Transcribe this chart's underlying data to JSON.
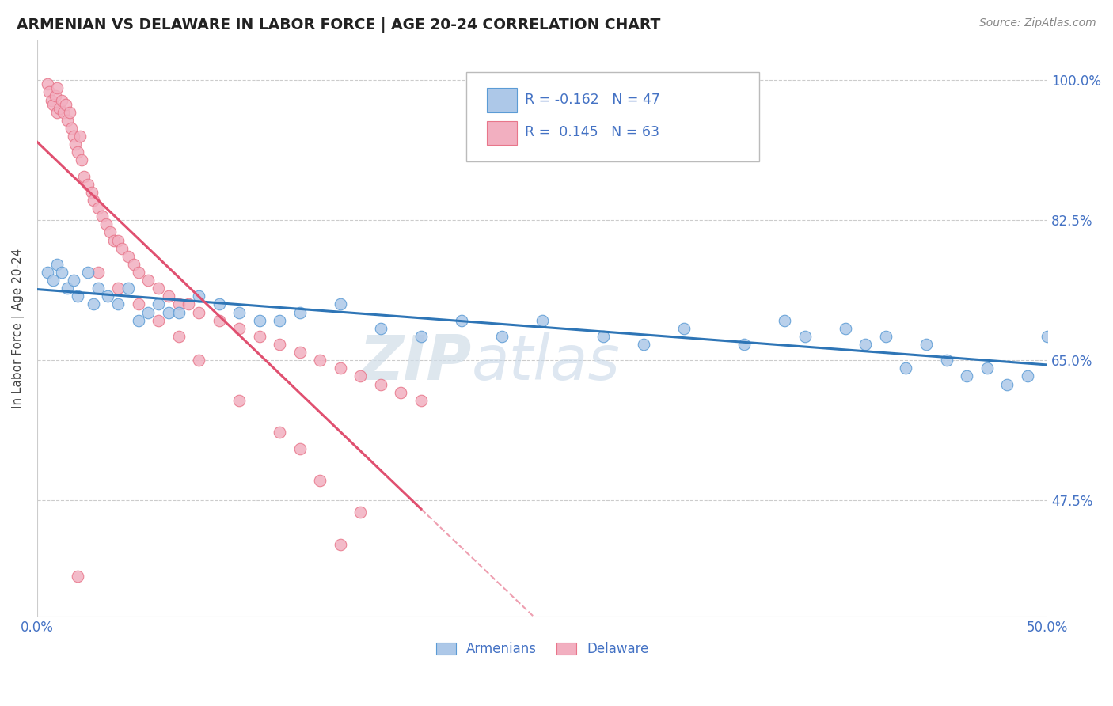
{
  "title": "ARMENIAN VS DELAWARE IN LABOR FORCE | AGE 20-24 CORRELATION CHART",
  "source": "Source: ZipAtlas.com",
  "ylabel": "In Labor Force | Age 20-24",
  "xlim": [
    0.0,
    0.5
  ],
  "ylim": [
    0.33,
    1.05
  ],
  "yticks": [
    0.475,
    0.65,
    0.825,
    1.0
  ],
  "yticklabels": [
    "47.5%",
    "65.0%",
    "82.5%",
    "100.0%"
  ],
  "R_blue": -0.162,
  "N_blue": 47,
  "R_pink": 0.145,
  "N_pink": 63,
  "blue_fill": "#adc8e8",
  "pink_fill": "#f2afc0",
  "blue_edge": "#5b9bd5",
  "pink_edge": "#e8768a",
  "blue_line_color": "#2e75b6",
  "pink_line_color": "#e05070",
  "watermark_color": "#d0dde8",
  "legend_label_blue": "Armenians",
  "legend_label_pink": "Delaware",
  "blue_x": [
    0.005,
    0.008,
    0.01,
    0.012,
    0.015,
    0.018,
    0.02,
    0.025,
    0.028,
    0.03,
    0.035,
    0.04,
    0.045,
    0.05,
    0.055,
    0.06,
    0.065,
    0.07,
    0.08,
    0.09,
    0.1,
    0.11,
    0.12,
    0.13,
    0.15,
    0.17,
    0.19,
    0.21,
    0.23,
    0.25,
    0.28,
    0.3,
    0.32,
    0.35,
    0.37,
    0.38,
    0.4,
    0.41,
    0.42,
    0.43,
    0.44,
    0.45,
    0.46,
    0.47,
    0.48,
    0.49,
    0.5
  ],
  "blue_y": [
    0.76,
    0.75,
    0.77,
    0.76,
    0.74,
    0.75,
    0.73,
    0.76,
    0.72,
    0.74,
    0.73,
    0.72,
    0.74,
    0.7,
    0.71,
    0.72,
    0.71,
    0.71,
    0.73,
    0.72,
    0.71,
    0.7,
    0.7,
    0.71,
    0.72,
    0.69,
    0.68,
    0.7,
    0.68,
    0.7,
    0.68,
    0.67,
    0.69,
    0.67,
    0.7,
    0.68,
    0.69,
    0.67,
    0.68,
    0.64,
    0.67,
    0.65,
    0.63,
    0.64,
    0.62,
    0.63,
    0.68
  ],
  "pink_x": [
    0.005,
    0.006,
    0.007,
    0.008,
    0.009,
    0.01,
    0.01,
    0.011,
    0.012,
    0.013,
    0.014,
    0.015,
    0.016,
    0.017,
    0.018,
    0.019,
    0.02,
    0.021,
    0.022,
    0.023,
    0.025,
    0.027,
    0.028,
    0.03,
    0.032,
    0.034,
    0.036,
    0.038,
    0.04,
    0.042,
    0.045,
    0.048,
    0.05,
    0.055,
    0.06,
    0.065,
    0.07,
    0.075,
    0.08,
    0.09,
    0.1,
    0.11,
    0.12,
    0.13,
    0.14,
    0.15,
    0.16,
    0.17,
    0.18,
    0.19,
    0.03,
    0.04,
    0.05,
    0.06,
    0.07,
    0.08,
    0.1,
    0.12,
    0.14,
    0.16,
    0.02,
    0.15,
    0.13
  ],
  "pink_y": [
    0.995,
    0.985,
    0.975,
    0.97,
    0.98,
    0.96,
    0.99,
    0.965,
    0.975,
    0.96,
    0.97,
    0.95,
    0.96,
    0.94,
    0.93,
    0.92,
    0.91,
    0.93,
    0.9,
    0.88,
    0.87,
    0.86,
    0.85,
    0.84,
    0.83,
    0.82,
    0.81,
    0.8,
    0.8,
    0.79,
    0.78,
    0.77,
    0.76,
    0.75,
    0.74,
    0.73,
    0.72,
    0.72,
    0.71,
    0.7,
    0.69,
    0.68,
    0.67,
    0.66,
    0.65,
    0.64,
    0.63,
    0.62,
    0.61,
    0.6,
    0.76,
    0.74,
    0.72,
    0.7,
    0.68,
    0.65,
    0.6,
    0.56,
    0.5,
    0.46,
    0.38,
    0.42,
    0.54
  ]
}
